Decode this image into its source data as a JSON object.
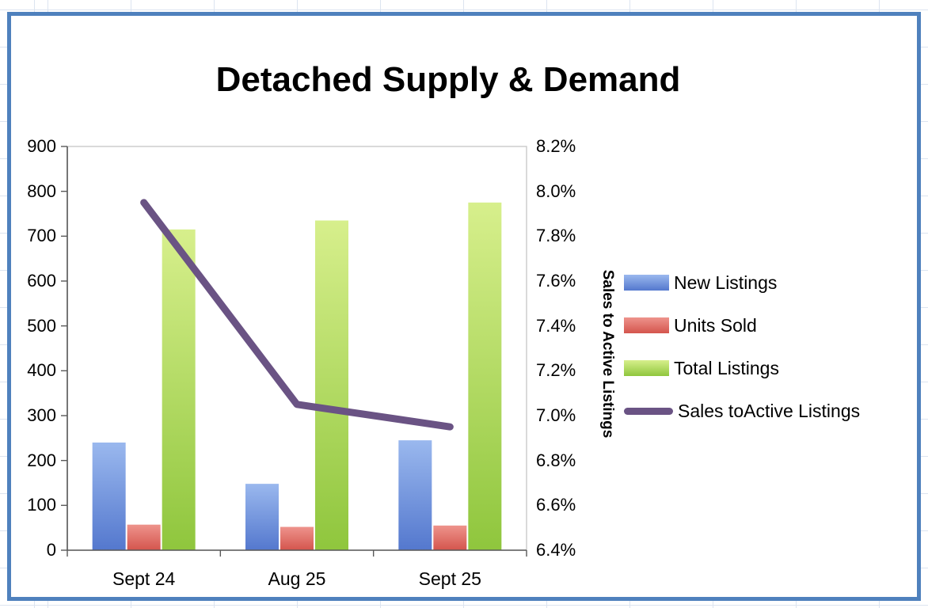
{
  "sheet": {
    "gridline_color": "#dce4f0",
    "selection_border_color": "#4f81bd"
  },
  "chart_data": {
    "type": "combo-bar-line",
    "title": "Detached Supply & Demand",
    "categories": [
      "Sept  24",
      "Aug 25",
      "Sept 25"
    ],
    "series": [
      {
        "name": "New Listings",
        "kind": "bar",
        "axis": "left",
        "values": [
          240,
          148,
          245
        ],
        "color_light": "#9ab8ee",
        "color_dark": "#5478ce"
      },
      {
        "name": "Units Sold",
        "kind": "bar",
        "axis": "left",
        "values": [
          57,
          52,
          55
        ],
        "color_light": "#ee938c",
        "color_dark": "#d4554d"
      },
      {
        "name": "Total Listings",
        "kind": "bar",
        "axis": "left",
        "values": [
          715,
          735,
          775
        ],
        "color_light": "#d7ef8c",
        "color_dark": "#8fc63d"
      },
      {
        "name": "Sales toActive Listings",
        "kind": "line",
        "axis": "right",
        "values": [
          7.95,
          7.05,
          6.95
        ],
        "color": "#6a5384"
      }
    ],
    "left_axis": {
      "min": 0,
      "max": 900,
      "step": 100,
      "ticks": [
        "900",
        "800",
        "700",
        "600",
        "500",
        "400",
        "300",
        "200",
        "100",
        "0"
      ]
    },
    "right_axis": {
      "min": 6.4,
      "max": 8.2,
      "step": 0.2,
      "format": "percent",
      "title": "Sales to Active Listings",
      "ticks": [
        "8.2%",
        "8.0%",
        "7.8%",
        "7.6%",
        "7.4%",
        "7.2%",
        "7.0%",
        "6.8%",
        "6.6%",
        "6.4%"
      ]
    },
    "legend_position": "right",
    "grid": false
  }
}
